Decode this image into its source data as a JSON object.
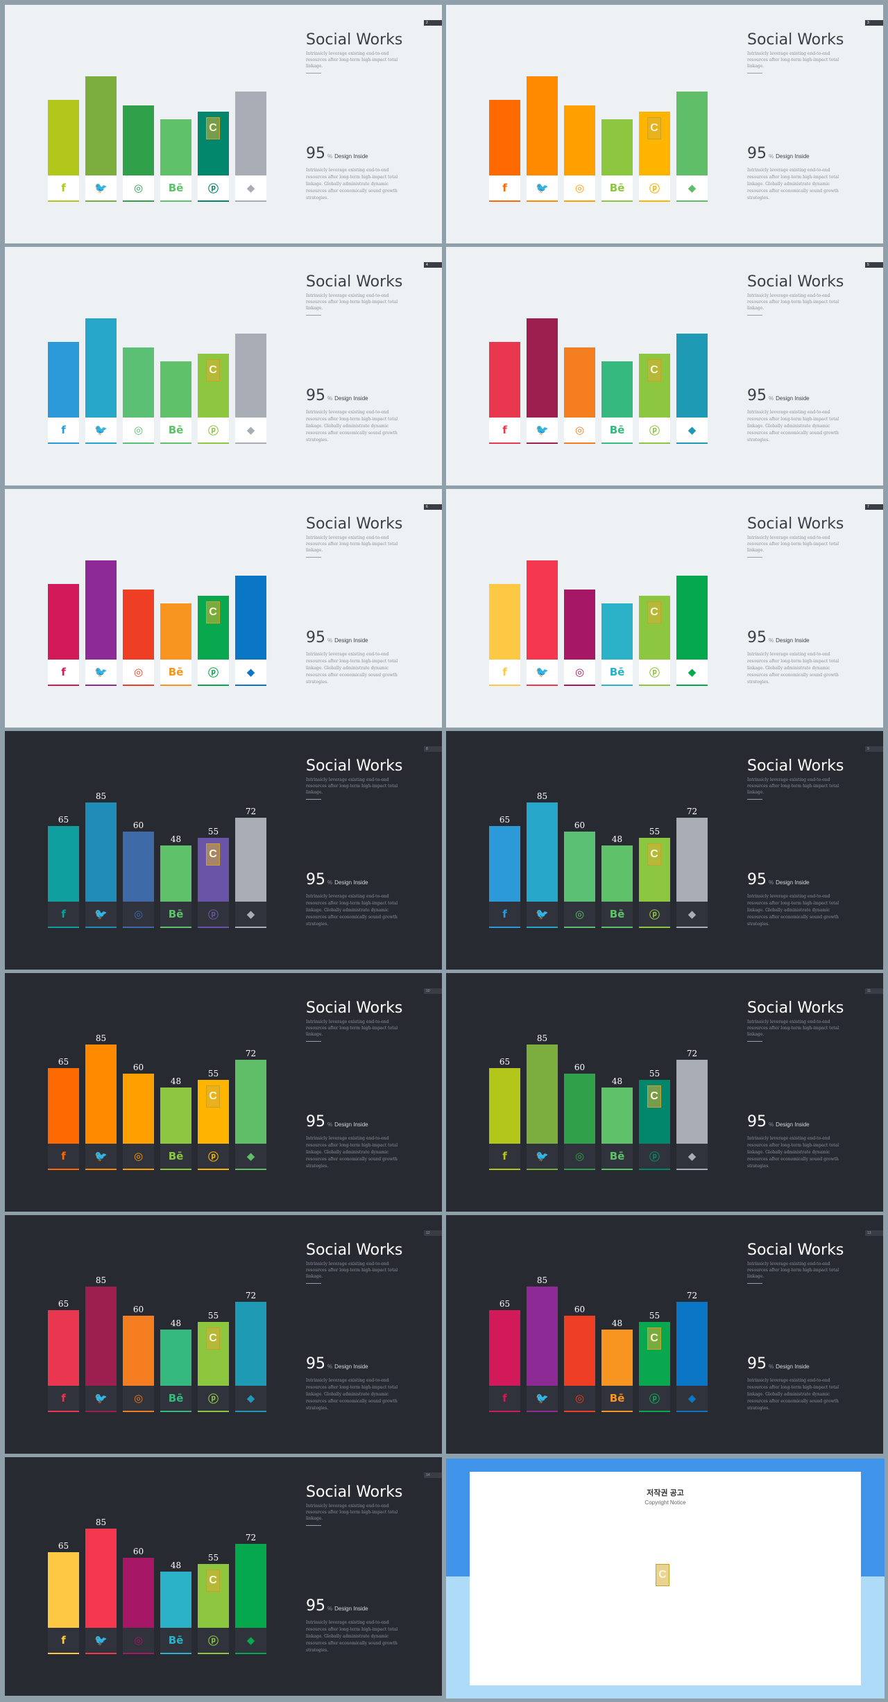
{
  "slide_common": {
    "title": "Social Works",
    "subtitle": "Intrinsicly leverage existing end-to-end resources after long-term high-impact total linkage.",
    "stat_number": "95",
    "stat_unit": "%",
    "stat_label": "Design Inside",
    "body": "Intrinsicly leverage existing end-to-end resources after long-term high-impact total linkage. Globally administrate dynamic resources after economically sound growth strategies."
  },
  "icons": [
    "f",
    "🐦",
    "◎",
    "Bē",
    "ⓟ",
    "◆"
  ],
  "icon_names": [
    "facebook-icon",
    "twitter-icon",
    "instagram-icon",
    "behance-icon",
    "pinterest-icon",
    "dropbox-icon"
  ],
  "bar_values": [
    65,
    85,
    60,
    48,
    55,
    72
  ],
  "value_labels": [
    "65",
    "85",
    "60",
    "48",
    "55",
    "72"
  ],
  "slides": [
    {
      "theme": "light",
      "page": "2",
      "show_values": false,
      "colors": [
        "#b2c71a",
        "#7cae3e",
        "#31a04a",
        "#60c16b",
        "#03876c",
        "#a9adb6"
      ]
    },
    {
      "theme": "light",
      "page": "3",
      "show_values": false,
      "colors": [
        "#ff6a00",
        "#ff8a00",
        "#ff9f00",
        "#8dc63f",
        "#ffb400",
        "#5fbe67"
      ]
    },
    {
      "theme": "light",
      "page": "4",
      "show_values": false,
      "colors": [
        "#2c9ad9",
        "#26a6c8",
        "#5bc073",
        "#60c16b",
        "#8dc63f",
        "#a9adb6"
      ]
    },
    {
      "theme": "light",
      "page": "5",
      "show_values": false,
      "colors": [
        "#e8374e",
        "#9c1f4f",
        "#f47d20",
        "#35b97e",
        "#8dc63f",
        "#1f9ab5"
      ]
    },
    {
      "theme": "light",
      "page": "6",
      "show_values": false,
      "colors": [
        "#d2195a",
        "#8e2a96",
        "#ee3e24",
        "#f89520",
        "#09a84e",
        "#0c76c6"
      ]
    },
    {
      "theme": "light",
      "page": "7",
      "show_values": false,
      "colors": [
        "#fdc844",
        "#f4364e",
        "#a61765",
        "#2bb2c8",
        "#8dc63f",
        "#06a84e"
      ]
    },
    {
      "theme": "dark",
      "page": "8",
      "show_values": true,
      "colors": [
        "#0f9f9f",
        "#1f8db7",
        "#3e6aa8",
        "#60c16b",
        "#6a54a8",
        "#a9adb6"
      ]
    },
    {
      "theme": "dark",
      "page": "9",
      "show_values": true,
      "colors": [
        "#2c9ad9",
        "#26a6c8",
        "#5bc073",
        "#60c16b",
        "#8dc63f",
        "#a9adb6"
      ]
    },
    {
      "theme": "dark",
      "page": "10",
      "show_values": true,
      "colors": [
        "#ff6a00",
        "#ff8a00",
        "#ff9f00",
        "#8dc63f",
        "#ffb400",
        "#5fbe67"
      ]
    },
    {
      "theme": "dark",
      "page": "11",
      "show_values": true,
      "colors": [
        "#b2c71a",
        "#7cae3e",
        "#31a04a",
        "#60c16b",
        "#03876c",
        "#a9adb6"
      ]
    },
    {
      "theme": "dark",
      "page": "12",
      "show_values": true,
      "colors": [
        "#e8374e",
        "#9c1f4f",
        "#f47d20",
        "#35b97e",
        "#8dc63f",
        "#1f9ab5"
      ]
    },
    {
      "theme": "dark",
      "page": "13",
      "show_values": true,
      "colors": [
        "#d2195a",
        "#8e2a96",
        "#ee3e24",
        "#f89520",
        "#09a84e",
        "#0c76c6"
      ]
    },
    {
      "theme": "dark",
      "page": "14",
      "show_values": true,
      "colors": [
        "#fdc844",
        "#f4364e",
        "#a61765",
        "#2bb2c8",
        "#8dc63f",
        "#06a84e"
      ]
    }
  ],
  "badge_text": "C",
  "copyright": {
    "title": "저작권 공고",
    "subtitle": "Copyright Notice"
  }
}
